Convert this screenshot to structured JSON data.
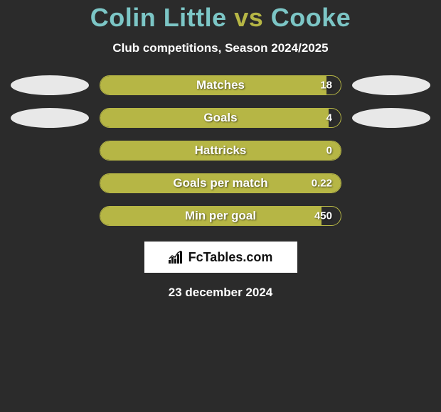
{
  "title": {
    "player1": "Colin Little",
    "vs": "vs",
    "player2": "Cooke"
  },
  "subtitle": "Club competitions, Season 2024/2025",
  "colors": {
    "background": "#2b2b2b",
    "accent": "#b6b645",
    "player_name": "#7cc6c6",
    "ellipse": "#e8e8e8",
    "text": "#ffffff",
    "logo_bg": "#ffffff",
    "logo_fg": "#111111"
  },
  "chart": {
    "type": "bar",
    "bar_color": "#b6b645",
    "border_color": "#b6b645",
    "track_width": 340,
    "track_height": 28,
    "border_radius": 14,
    "label_fontsize": 17,
    "value_fontsize": 15,
    "rows": [
      {
        "label": "Matches",
        "value": "18",
        "fill_pct": 94,
        "show_left_ellipse": true,
        "show_right_ellipse": true
      },
      {
        "label": "Goals",
        "value": "4",
        "fill_pct": 95,
        "show_left_ellipse": true,
        "show_right_ellipse": true
      },
      {
        "label": "Hattricks",
        "value": "0",
        "fill_pct": 100,
        "show_left_ellipse": false,
        "show_right_ellipse": false
      },
      {
        "label": "Goals per match",
        "value": "0.22",
        "fill_pct": 100,
        "show_left_ellipse": false,
        "show_right_ellipse": false
      },
      {
        "label": "Min per goal",
        "value": "450",
        "fill_pct": 92,
        "show_left_ellipse": false,
        "show_right_ellipse": false
      }
    ]
  },
  "logo": {
    "text": "FcTables.com"
  },
  "date": "23 december 2024"
}
